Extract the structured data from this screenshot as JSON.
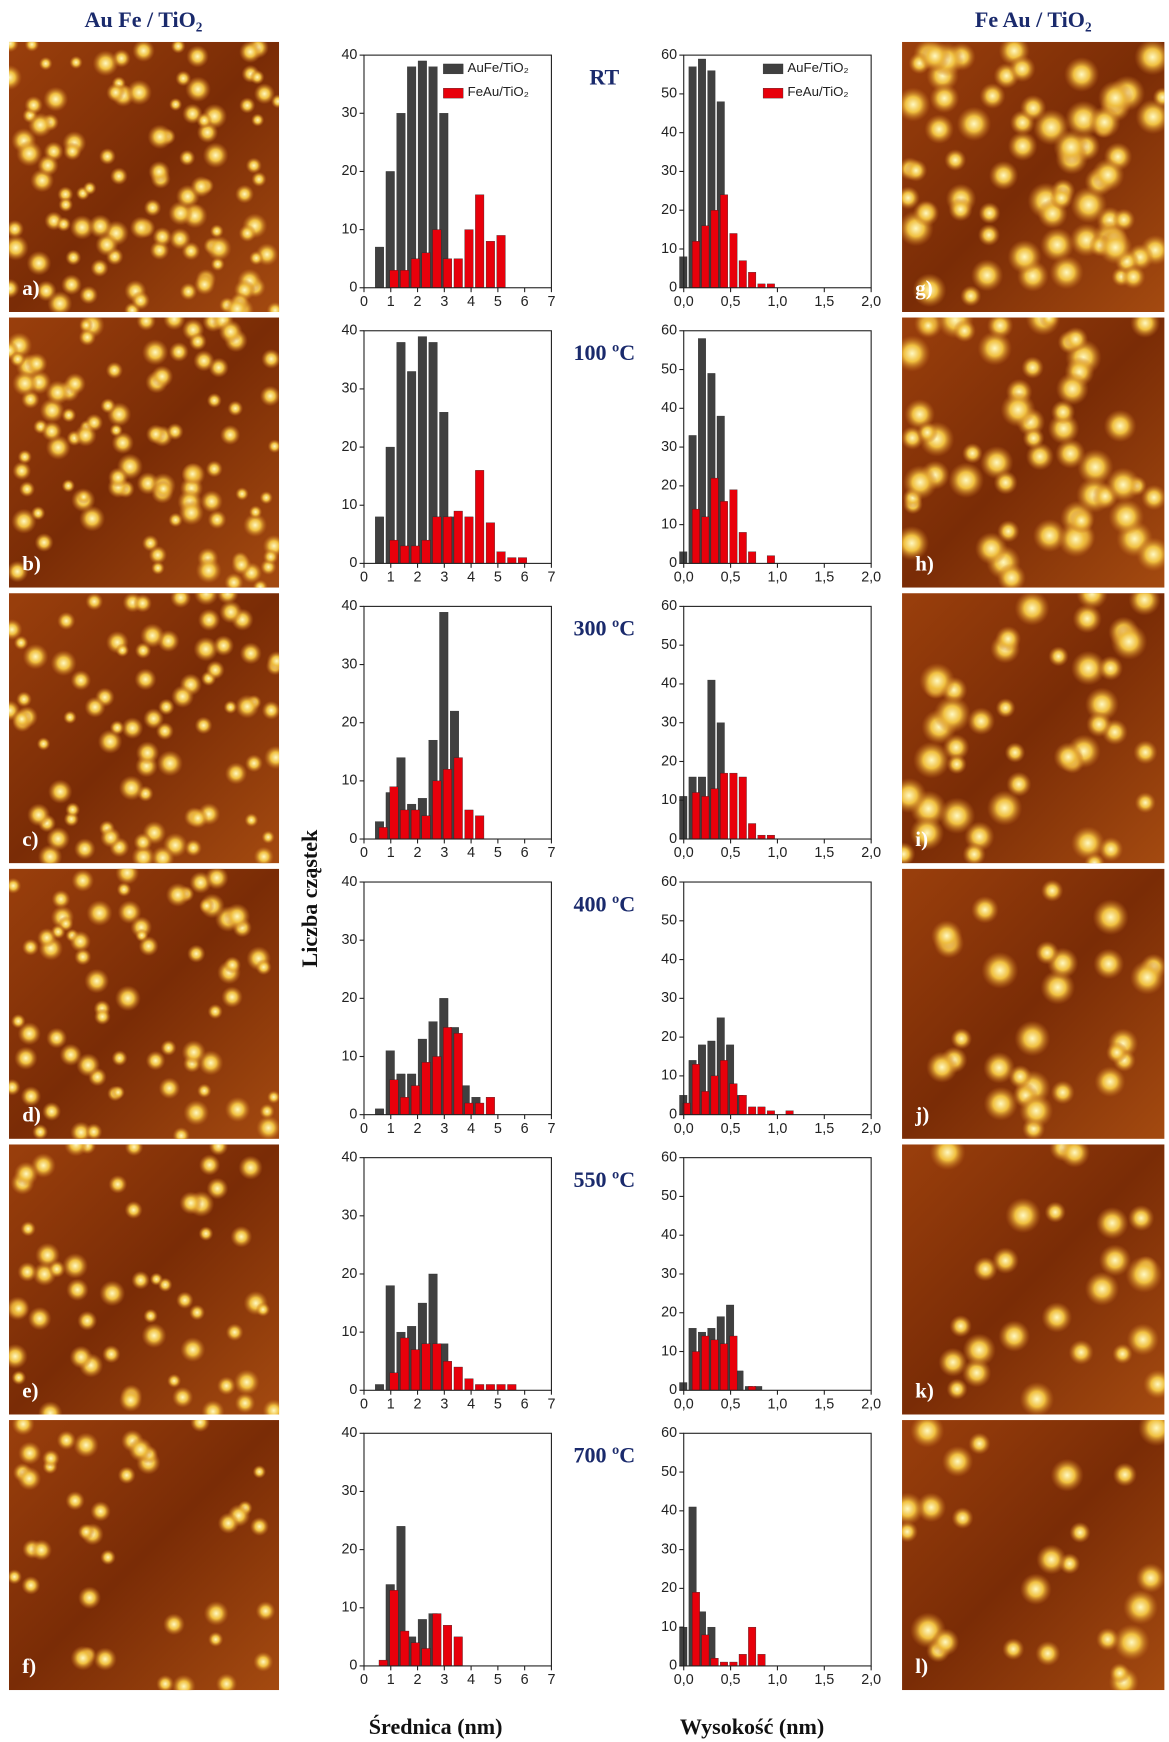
{
  "figure": {
    "left_title": "Au Fe / TiO₂",
    "right_title": "Fe Au / TiO₂",
    "temperatures": [
      "RT",
      "100 ºC",
      "300 ºC",
      "400 ºC",
      "550 ºC",
      "700 ºC"
    ],
    "panels": [
      "a)",
      "b)",
      "c)",
      "d)",
      "e)",
      "f)",
      "g)",
      "h)",
      "i)",
      "j)",
      "k)",
      "l)"
    ],
    "y_label": "Liczba cząstek",
    "x_labels": [
      "Średnica (nm)",
      "Wysokość (nm)"
    ]
  },
  "chart_data": [
    {
      "type": "bar",
      "legend": "upper right",
      "xlim": [
        0,
        7
      ],
      "ylim": [
        0,
        40
      ],
      "xticks": [
        0,
        1,
        2,
        3,
        4,
        5,
        6,
        7
      ],
      "yticks": [
        0,
        10,
        20,
        30,
        40
      ],
      "x": [
        0.6,
        1,
        1.4,
        1.8,
        2.2,
        2.6,
        3,
        3.4,
        3.8,
        4.2,
        4.6,
        5,
        5.4,
        5.8,
        6.2
      ],
      "series": [
        {
          "name": "AuFe/TiO₂",
          "color": "#404040",
          "values": [
            7,
            20,
            30,
            38,
            39,
            38,
            30,
            null,
            null,
            null,
            null,
            null,
            null,
            null,
            null
          ]
        },
        {
          "name": "FeAu/TiO₂",
          "color": "#e8000b",
          "values": [
            null,
            3,
            3,
            5,
            6,
            10,
            5,
            5,
            10,
            16,
            8,
            9,
            null,
            null,
            null
          ]
        }
      ]
    },
    {
      "type": "bar",
      "legend": "upper right",
      "xlim": [
        0,
        2
      ],
      "ylim": [
        0,
        60
      ],
      "xticks": [
        {
          "value": 0,
          "label": "0,0"
        },
        {
          "value": 0.5,
          "label": "0,5"
        },
        {
          "value": 1,
          "label": "1,0"
        },
        {
          "value": 1.5,
          "label": "1,5"
        },
        {
          "value": 2,
          "label": "2,0"
        }
      ],
      "yticks": [
        0,
        10,
        20,
        30,
        40,
        50,
        60
      ],
      "x": [
        0,
        0.1,
        0.2,
        0.3,
        0.4,
        0.5,
        0.6,
        0.7,
        0.8,
        0.9,
        1,
        1.1,
        1.2,
        1.3,
        1.4
      ],
      "series": [
        {
          "name": "AuFe/TiO₂",
          "color": "#404040",
          "values": [
            8,
            57,
            59,
            56,
            48,
            null,
            null,
            null,
            null,
            null,
            null,
            null,
            null,
            null,
            null
          ]
        },
        {
          "name": "FeAu/TiO₂",
          "color": "#e8000b",
          "values": [
            null,
            12,
            16,
            20,
            24,
            14,
            7,
            4,
            1,
            1,
            null,
            null,
            null,
            null,
            null
          ]
        }
      ]
    },
    {
      "type": "bar",
      "xlim": [
        0,
        7
      ],
      "ylim": [
        0,
        40
      ],
      "xticks": [
        0,
        1,
        2,
        3,
        4,
        5,
        6,
        7
      ],
      "yticks": [
        0,
        10,
        20,
        30,
        40
      ],
      "x": [
        0.6,
        1,
        1.4,
        1.8,
        2.2,
        2.6,
        3,
        3.4,
        3.8,
        4.2,
        4.6,
        5,
        5.4,
        5.8,
        6.2
      ],
      "series": [
        {
          "color": "#404040",
          "values": [
            8,
            20,
            38,
            33,
            39,
            38,
            26,
            8,
            null,
            null,
            null,
            null,
            null,
            null,
            null
          ]
        },
        {
          "color": "#e8000b",
          "values": [
            null,
            4,
            3,
            3,
            4,
            8,
            8,
            9,
            8,
            16,
            7,
            2,
            1,
            1,
            null
          ]
        }
      ]
    },
    {
      "type": "bar",
      "xlim": [
        0,
        2
      ],
      "ylim": [
        0,
        60
      ],
      "xticks": [
        {
          "value": 0,
          "label": "0,0"
        },
        {
          "value": 0.5,
          "label": "0,5"
        },
        {
          "value": 1,
          "label": "1,0"
        },
        {
          "value": 1.5,
          "label": "1,5"
        },
        {
          "value": 2,
          "label": "2,0"
        }
      ],
      "yticks": [
        0,
        10,
        20,
        30,
        40,
        50,
        60
      ],
      "x": [
        0,
        0.1,
        0.2,
        0.3,
        0.4,
        0.5,
        0.6,
        0.7,
        0.8,
        0.9,
        1,
        1.1,
        1.2,
        1.3,
        1.4
      ],
      "series": [
        {
          "color": "#404040",
          "values": [
            3,
            33,
            58,
            49,
            38,
            null,
            null,
            null,
            null,
            null,
            null,
            null,
            null,
            null,
            null
          ]
        },
        {
          "color": "#e8000b",
          "values": [
            null,
            14,
            12,
            22,
            16,
            19,
            8,
            3,
            null,
            2,
            null,
            null,
            null,
            null,
            null
          ]
        }
      ]
    },
    {
      "type": "bar",
      "xlim": [
        0,
        7
      ],
      "ylim": [
        0,
        40
      ],
      "xticks": [
        0,
        1,
        2,
        3,
        4,
        5,
        6,
        7
      ],
      "yticks": [
        0,
        10,
        20,
        30,
        40
      ],
      "x": [
        0.6,
        1,
        1.4,
        1.8,
        2.2,
        2.6,
        3,
        3.4,
        3.8,
        4.2,
        4.6,
        5,
        5.4,
        5.8,
        6.2
      ],
      "series": [
        {
          "color": "#404040",
          "values": [
            3,
            8,
            14,
            6,
            7,
            17,
            39,
            22,
            null,
            null,
            null,
            null,
            null,
            null,
            null
          ]
        },
        {
          "color": "#e8000b",
          "values": [
            2,
            9,
            5,
            5,
            4,
            10,
            12,
            14,
            5,
            4,
            null,
            null,
            null,
            null,
            null
          ]
        }
      ]
    },
    {
      "type": "bar",
      "xlim": [
        0,
        2
      ],
      "ylim": [
        0,
        60
      ],
      "xticks": [
        {
          "value": 0,
          "label": "0,0"
        },
        {
          "value": 0.5,
          "label": "0,5"
        },
        {
          "value": 1,
          "label": "1,0"
        },
        {
          "value": 1.5,
          "label": "1,5"
        },
        {
          "value": 2,
          "label": "2,0"
        }
      ],
      "yticks": [
        0,
        10,
        20,
        30,
        40,
        50,
        60
      ],
      "x": [
        0,
        0.1,
        0.2,
        0.3,
        0.4,
        0.5,
        0.6,
        0.7,
        0.8,
        0.9,
        1,
        1.1,
        1.2,
        1.3,
        1.4
      ],
      "series": [
        {
          "color": "#404040",
          "values": [
            11,
            16,
            16,
            41,
            30,
            null,
            null,
            null,
            null,
            null,
            null,
            null,
            null,
            null,
            null
          ]
        },
        {
          "color": "#e8000b",
          "values": [
            null,
            12,
            11,
            13,
            17,
            17,
            16,
            4,
            1,
            1,
            null,
            null,
            null,
            null,
            null
          ]
        }
      ]
    },
    {
      "type": "bar",
      "xlim": [
        0,
        7
      ],
      "ylim": [
        0,
        40
      ],
      "xticks": [
        0,
        1,
        2,
        3,
        4,
        5,
        6,
        7
      ],
      "yticks": [
        0,
        10,
        20,
        30,
        40
      ],
      "x": [
        0.6,
        1,
        1.4,
        1.8,
        2.2,
        2.6,
        3,
        3.4,
        3.8,
        4.2,
        4.6,
        5,
        5.4,
        5.8,
        6.2
      ],
      "series": [
        {
          "color": "#404040",
          "values": [
            1,
            11,
            7,
            7,
            13,
            16,
            20,
            15,
            5,
            3,
            null,
            null,
            null,
            null,
            null
          ]
        },
        {
          "color": "#e8000b",
          "values": [
            null,
            6,
            3,
            5,
            9,
            10,
            15,
            14,
            2,
            2,
            3,
            null,
            null,
            null,
            null
          ]
        }
      ]
    },
    {
      "type": "bar",
      "xlim": [
        0,
        2
      ],
      "ylim": [
        0,
        60
      ],
      "xticks": [
        {
          "value": 0,
          "label": "0,0"
        },
        {
          "value": 0.5,
          "label": "0,5"
        },
        {
          "value": 1,
          "label": "1,0"
        },
        {
          "value": 1.5,
          "label": "1,5"
        },
        {
          "value": 2,
          "label": "2,0"
        }
      ],
      "yticks": [
        0,
        10,
        20,
        30,
        40,
        50,
        60
      ],
      "x": [
        0,
        0.1,
        0.2,
        0.3,
        0.4,
        0.5,
        0.6,
        0.7,
        0.8,
        0.9,
        1,
        1.1,
        1.2,
        1.3,
        1.4
      ],
      "series": [
        {
          "color": "#404040",
          "values": [
            5,
            14,
            18,
            19,
            25,
            18,
            5,
            null,
            null,
            null,
            null,
            null,
            null,
            null,
            null
          ]
        },
        {
          "color": "#e8000b",
          "values": [
            3,
            13,
            6,
            10,
            14,
            8,
            5,
            2,
            2,
            1,
            null,
            1,
            null,
            null,
            null
          ]
        }
      ]
    },
    {
      "type": "bar",
      "xlim": [
        0,
        7
      ],
      "ylim": [
        0,
        40
      ],
      "xticks": [
        0,
        1,
        2,
        3,
        4,
        5,
        6,
        7
      ],
      "yticks": [
        0,
        10,
        20,
        30,
        40
      ],
      "x": [
        0.6,
        1,
        1.4,
        1.8,
        2.2,
        2.6,
        3,
        3.4,
        3.8,
        4.2,
        4.6,
        5,
        5.4,
        5.8,
        6.2
      ],
      "series": [
        {
          "color": "#404040",
          "values": [
            1,
            18,
            10,
            11,
            15,
            20,
            8,
            null,
            null,
            null,
            null,
            null,
            null,
            null,
            null
          ]
        },
        {
          "color": "#e8000b",
          "values": [
            null,
            3,
            9,
            7,
            8,
            8,
            5,
            4,
            2,
            1,
            1,
            1,
            1,
            null,
            null
          ]
        }
      ]
    },
    {
      "type": "bar",
      "xlim": [
        0,
        2
      ],
      "ylim": [
        0,
        60
      ],
      "xticks": [
        {
          "value": 0,
          "label": "0,0"
        },
        {
          "value": 0.5,
          "label": "0,5"
        },
        {
          "value": 1,
          "label": "1,0"
        },
        {
          "value": 1.5,
          "label": "1,5"
        },
        {
          "value": 2,
          "label": "2,0"
        }
      ],
      "yticks": [
        0,
        10,
        20,
        30,
        40,
        50,
        60
      ],
      "x": [
        0,
        0.1,
        0.2,
        0.3,
        0.4,
        0.5,
        0.6,
        0.7,
        0.8,
        0.9,
        1,
        1.1,
        1.2,
        1.3,
        1.4
      ],
      "series": [
        {
          "color": "#404040",
          "values": [
            2,
            16,
            15,
            16,
            19,
            22,
            5,
            1,
            1,
            null,
            null,
            null,
            null,
            null,
            null
          ]
        },
        {
          "color": "#e8000b",
          "values": [
            null,
            10,
            14,
            13,
            12,
            14,
            null,
            1,
            null,
            null,
            null,
            null,
            null,
            null,
            null
          ]
        }
      ]
    },
    {
      "type": "bar",
      "xlim": [
        0,
        7
      ],
      "ylim": [
        0,
        40
      ],
      "xticks": [
        0,
        1,
        2,
        3,
        4,
        5,
        6,
        7
      ],
      "yticks": [
        0,
        10,
        20,
        30,
        40
      ],
      "x": [
        0.6,
        1,
        1.4,
        1.8,
        2.2,
        2.6,
        3,
        3.4,
        3.8,
        4.2,
        4.6,
        5,
        5.4,
        5.8,
        6.2
      ],
      "series": [
        {
          "color": "#404040",
          "values": [
            null,
            14,
            24,
            5,
            8,
            9,
            null,
            null,
            null,
            null,
            null,
            null,
            null,
            null,
            null
          ]
        },
        {
          "color": "#e8000b",
          "values": [
            1,
            13,
            6,
            4,
            3,
            9,
            7,
            5,
            null,
            null,
            null,
            null,
            null,
            null,
            null
          ]
        }
      ]
    },
    {
      "type": "bar",
      "xlim": [
        0,
        2
      ],
      "ylim": [
        0,
        60
      ],
      "xticks": [
        {
          "value": 0,
          "label": "0,0"
        },
        {
          "value": 0.5,
          "label": "0,5"
        },
        {
          "value": 1,
          "label": "1,0"
        },
        {
          "value": 1.5,
          "label": "1,5"
        },
        {
          "value": 2,
          "label": "2,0"
        }
      ],
      "yticks": [
        0,
        10,
        20,
        30,
        40,
        50,
        60
      ],
      "x": [
        0,
        0.1,
        0.2,
        0.3,
        0.4,
        0.5,
        0.6,
        0.7,
        0.8,
        0.9,
        1,
        1.1,
        1.2,
        1.3,
        1.4
      ],
      "series": [
        {
          "color": "#404040",
          "values": [
            10,
            41,
            14,
            10,
            null,
            null,
            null,
            null,
            null,
            null,
            null,
            null,
            null,
            null,
            null
          ]
        },
        {
          "color": "#e8000b",
          "values": [
            null,
            19,
            8,
            2,
            1,
            1,
            3,
            10,
            3,
            null,
            null,
            null,
            null,
            null,
            null
          ]
        }
      ]
    }
  ]
}
